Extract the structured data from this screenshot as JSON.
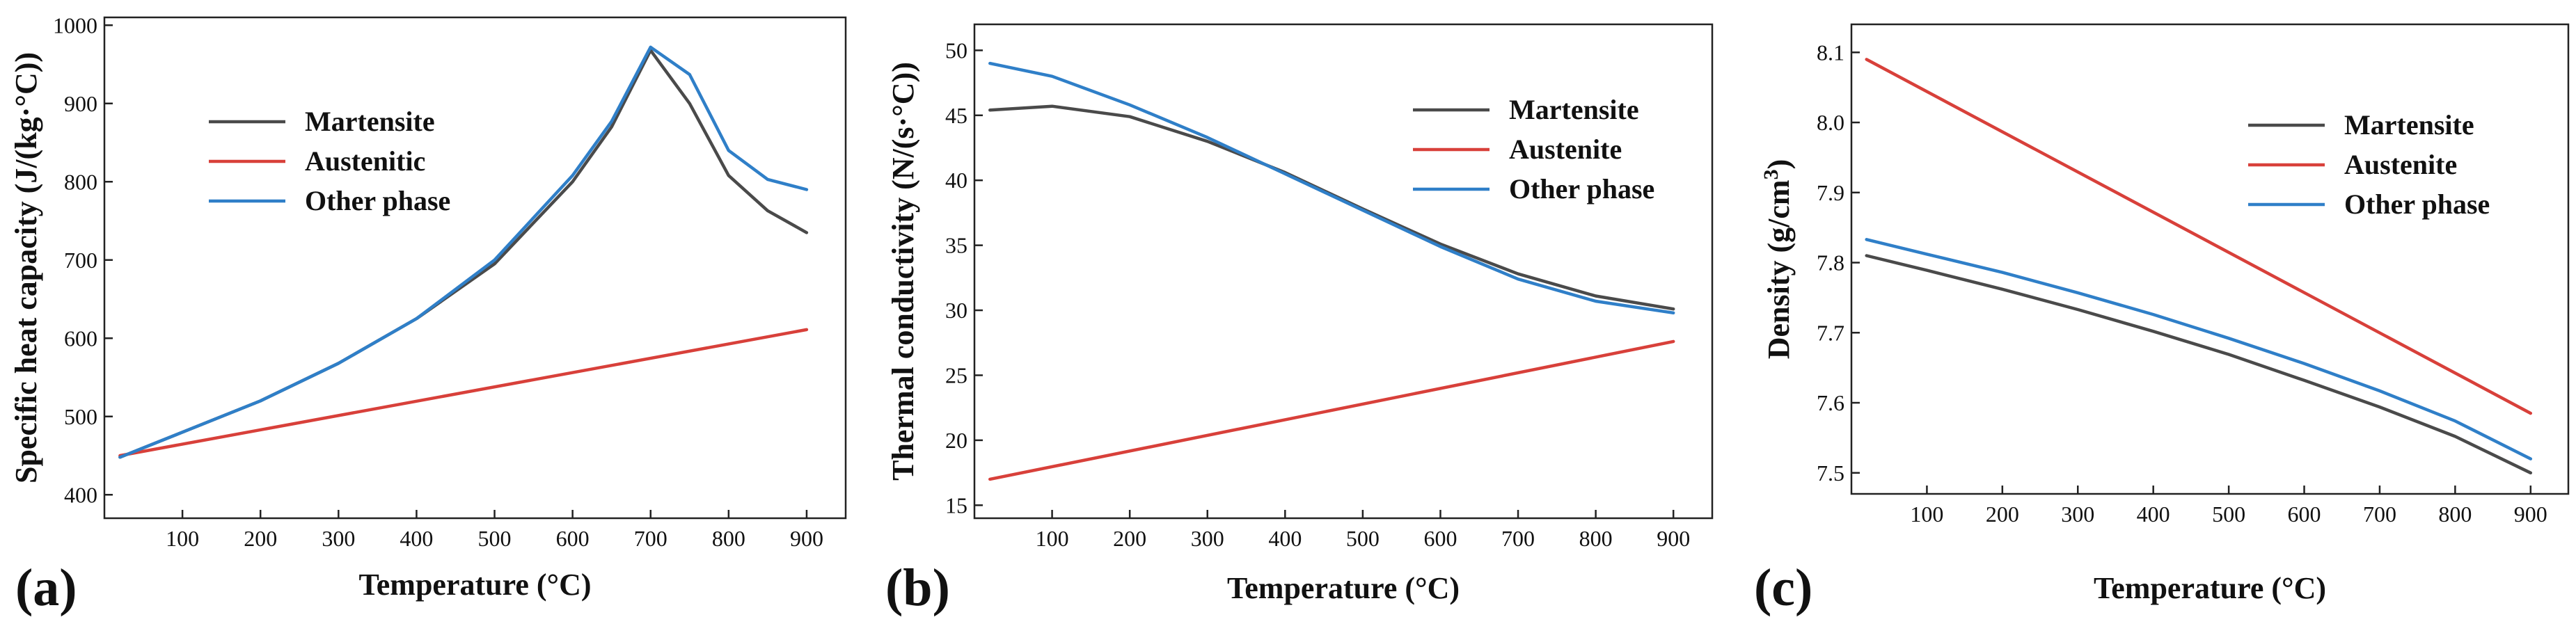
{
  "chart_data": [
    {
      "type": "line",
      "panel_label": "(a)",
      "title": "",
      "xlabel": "Temperature (°C)",
      "ylabel": "Specific heat capacity (J/(kg·°C))",
      "xlim": [
        0,
        950
      ],
      "ylim": [
        370,
        1010
      ],
      "xticks": [
        100,
        200,
        300,
        400,
        500,
        600,
        700,
        800,
        900
      ],
      "yticks": [
        400,
        500,
        600,
        700,
        800,
        900,
        1000
      ],
      "legend_position": "top-left",
      "series": [
        {
          "name": "Martensite",
          "color": "#4a4a4a",
          "x": [
            20,
            100,
            200,
            300,
            400,
            500,
            600,
            650,
            700,
            750,
            800,
            850,
            900
          ],
          "y": [
            448,
            480,
            520,
            568,
            625,
            695,
            800,
            870,
            968,
            900,
            808,
            763,
            735
          ]
        },
        {
          "name": "Austenitic",
          "color": "#d8403a",
          "x": [
            20,
            900
          ],
          "y": [
            450,
            611
          ]
        },
        {
          "name": "Other phase",
          "color": "#2f7fc8",
          "x": [
            20,
            100,
            200,
            300,
            400,
            500,
            600,
            650,
            700,
            750,
            800,
            850,
            900
          ],
          "y": [
            448,
            480,
            520,
            568,
            625,
            700,
            808,
            877,
            972,
            937,
            840,
            803,
            790
          ]
        }
      ]
    },
    {
      "type": "line",
      "panel_label": "(b)",
      "title": "",
      "xlabel": "Temperature (°C)",
      "ylabel": "Thermal conductivity (N/(s·°C))",
      "xlim": [
        0,
        950
      ],
      "ylim": [
        14,
        52
      ],
      "xticks": [
        100,
        200,
        300,
        400,
        500,
        600,
        700,
        800,
        900
      ],
      "yticks": [
        15,
        20,
        25,
        30,
        35,
        40,
        45,
        50
      ],
      "legend_position": "top-right",
      "series": [
        {
          "name": "Martensite",
          "color": "#4a4a4a",
          "x": [
            20,
            100,
            200,
            300,
            400,
            500,
            600,
            700,
            800,
            900
          ],
          "y": [
            45.4,
            45.7,
            44.9,
            43.0,
            40.6,
            37.8,
            35.1,
            32.8,
            31.1,
            30.1
          ]
        },
        {
          "name": "Austenite",
          "color": "#d8403a",
          "x": [
            20,
            900
          ],
          "y": [
            17.0,
            27.6
          ]
        },
        {
          "name": "Other phase",
          "color": "#2f7fc8",
          "x": [
            20,
            100,
            200,
            300,
            400,
            500,
            600,
            700,
            800,
            900
          ],
          "y": [
            49.0,
            48.0,
            45.8,
            43.3,
            40.5,
            37.7,
            34.9,
            32.4,
            30.7,
            29.8
          ]
        }
      ]
    },
    {
      "type": "line",
      "panel_label": "(c)",
      "title": "",
      "xlabel": "Temperature (°C)",
      "ylabel": "Density (g/cm",
      "ylabel_superscript": "3",
      "ylabel_suffix": ")",
      "xlim": [
        0,
        950
      ],
      "ylim": [
        7.47,
        8.14
      ],
      "xticks": [
        100,
        200,
        300,
        400,
        500,
        600,
        700,
        800,
        900
      ],
      "yticks": [
        7.5,
        7.6,
        7.7,
        7.8,
        7.9,
        8.0,
        8.1
      ],
      "yticks_decimals": 1,
      "legend_position": "top-right",
      "series": [
        {
          "name": "Martensite",
          "color": "#4a4a4a",
          "x": [
            20,
            100,
            200,
            300,
            400,
            500,
            600,
            700,
            800,
            900
          ],
          "y": [
            7.81,
            7.789,
            7.762,
            7.733,
            7.702,
            7.669,
            7.632,
            7.594,
            7.552,
            7.5
          ]
        },
        {
          "name": "Austenite",
          "color": "#d8403a",
          "x": [
            20,
            900
          ],
          "y": [
            8.09,
            7.585
          ]
        },
        {
          "name": "Other phase",
          "color": "#2f7fc8",
          "x": [
            20,
            100,
            200,
            300,
            400,
            500,
            600,
            700,
            800,
            900
          ],
          "y": [
            7.833,
            7.812,
            7.786,
            7.757,
            7.726,
            7.692,
            7.656,
            7.617,
            7.574,
            7.52
          ]
        }
      ]
    }
  ]
}
